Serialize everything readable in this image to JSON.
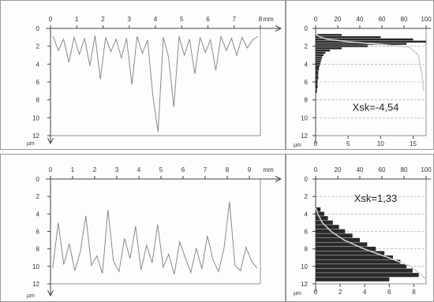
{
  "chart_data": [
    {
      "type": "line",
      "id": "profile-top",
      "x_unit": "mm",
      "y_unit": "µm",
      "xlim": [
        0,
        8
      ],
      "ylim": [
        0,
        12
      ],
      "y_inverted": true,
      "x_ticks": [
        0,
        1,
        2,
        3,
        4,
        5,
        6,
        7,
        8
      ],
      "y_ticks": [
        0,
        2,
        4,
        6,
        8,
        10,
        12
      ],
      "grid": false,
      "series": [
        {
          "color": "#8a8a8a",
          "x": [
            0.1,
            0.3,
            0.5,
            0.7,
            0.9,
            1.1,
            1.3,
            1.5,
            1.7,
            1.9,
            2.1,
            2.3,
            2.5,
            2.7,
            2.9,
            3.1,
            3.3,
            3.5,
            3.7,
            3.9,
            4.1,
            4.3,
            4.5,
            4.7,
            4.9,
            5.1,
            5.3,
            5.5,
            5.7,
            5.9,
            6.1,
            6.3,
            6.5,
            6.7,
            6.9,
            7.1,
            7.3,
            7.5,
            7.7,
            7.9
          ],
          "y": [
            0.9,
            2.5,
            1.2,
            3.8,
            1.0,
            2.9,
            1.1,
            4.2,
            0.8,
            5.7,
            1.0,
            2.6,
            1.2,
            3.3,
            1.1,
            6.3,
            0.9,
            2.8,
            1.3,
            7.5,
            11.6,
            1.0,
            3.2,
            8.8,
            0.9,
            3.0,
            1.2,
            5.1,
            1.0,
            2.7,
            1.3,
            4.7,
            0.9,
            2.5,
            1.1,
            3.0,
            1.0,
            2.2,
            1.3,
            0.9
          ]
        }
      ]
    },
    {
      "type": "bar",
      "id": "histogram-top",
      "orientation": "horizontal",
      "xlim": [
        0,
        100
      ],
      "x_ticks_top": [
        0,
        20,
        40,
        60,
        80,
        100
      ],
      "secondary_xlim": [
        0,
        17
      ],
      "x_ticks_bottom": [
        0,
        5,
        10,
        15
      ],
      "ylim": [
        0,
        12
      ],
      "y_ticks": [
        0,
        2,
        4,
        6,
        8,
        10,
        12
      ],
      "y_unit": "µm",
      "grid": "horizontal-dashed",
      "annotation": "Xsk=-4,54",
      "bars": {
        "depth": [
          0.75,
          1.0,
          1.25,
          1.5,
          1.75,
          2.0,
          2.25,
          2.5,
          2.75,
          3.0,
          3.25,
          3.5,
          3.75,
          4.0,
          4.25,
          4.5,
          5.0,
          5.5,
          6.0,
          6.5,
          7.0
        ],
        "value": [
          4,
          10,
          15,
          17,
          14,
          8,
          4,
          2.2,
          1.5,
          1.2,
          1.0,
          0.9,
          0.8,
          0.7,
          0.6,
          0.5,
          0.4,
          0.4,
          0.3,
          0.3,
          0.2
        ]
      },
      "abbott_curve": {
        "color": "#d0d0d0",
        "percent": [
          0,
          3,
          10,
          30,
          60,
          85,
          93,
          96,
          98
        ],
        "depth": [
          0.6,
          0.9,
          1.2,
          1.5,
          1.8,
          2.1,
          3.0,
          5.0,
          7.0
        ]
      }
    },
    {
      "type": "line",
      "id": "profile-bottom",
      "x_unit": "mm",
      "y_unit": "µm",
      "xlim": [
        0,
        9.5
      ],
      "ylim": [
        0,
        12
      ],
      "y_inverted": true,
      "x_ticks": [
        0,
        1,
        2,
        3,
        4,
        5,
        6,
        7,
        8,
        9
      ],
      "y_ticks": [
        0,
        2,
        4,
        6,
        8,
        10,
        12
      ],
      "grid": false,
      "series": [
        {
          "color": "#8a8a8a",
          "x": [
            0.1,
            0.35,
            0.6,
            0.85,
            1.1,
            1.35,
            1.6,
            1.85,
            2.1,
            2.35,
            2.6,
            2.85,
            3.1,
            3.35,
            3.6,
            3.85,
            4.1,
            4.35,
            4.6,
            4.85,
            5.1,
            5.35,
            5.6,
            5.85,
            6.1,
            6.35,
            6.6,
            6.85,
            7.1,
            7.35,
            7.6,
            7.85,
            8.1,
            8.35,
            8.6,
            8.85,
            9.1,
            9.35
          ],
          "y": [
            10.2,
            5.0,
            9.8,
            7.4,
            10.5,
            8.3,
            4.2,
            9.9,
            8.8,
            10.8,
            3.5,
            9.4,
            10.6,
            6.8,
            9.1,
            5.4,
            10.4,
            7.6,
            9.6,
            5.2,
            10.1,
            8.6,
            10.9,
            7.2,
            9.0,
            10.7,
            7.9,
            10.3,
            6.5,
            9.2,
            10.6,
            8.0,
            2.6,
            9.9,
            10.5,
            7.8,
            9.4,
            10.2
          ]
        }
      ]
    },
    {
      "type": "bar",
      "id": "histogram-bottom",
      "orientation": "horizontal",
      "xlim": [
        0,
        100
      ],
      "x_ticks_top": [
        0,
        20,
        40,
        60,
        80,
        100
      ],
      "secondary_xlim": [
        0,
        9
      ],
      "x_ticks_bottom": [
        0,
        2,
        4,
        6,
        8
      ],
      "ylim": [
        0,
        12
      ],
      "y_ticks": [
        0,
        2,
        4,
        6,
        8,
        10,
        12
      ],
      "y_unit": "µm",
      "grid": "horizontal-dashed",
      "annotation": "Xsk=1,33",
      "bars": {
        "depth": [
          3.5,
          4.0,
          4.5,
          5.0,
          5.5,
          6.0,
          6.5,
          7.0,
          7.5,
          8.0,
          8.5,
          9.0,
          9.5,
          10.0,
          10.5,
          11.0,
          11.5
        ],
        "value": [
          0.4,
          0.7,
          1.0,
          1.4,
          1.9,
          2.4,
          3.0,
          3.6,
          4.2,
          4.9,
          5.6,
          6.3,
          6.9,
          7.4,
          7.9,
          8.4,
          6.0
        ]
      },
      "abbott_curve": {
        "color": "#d0d0d0",
        "percent": [
          0,
          2,
          6,
          14,
          26,
          44,
          66,
          86,
          96,
          100
        ],
        "depth": [
          3.3,
          4.0,
          5.0,
          6.0,
          7.0,
          8.0,
          9.0,
          10.0,
          11.0,
          11.5
        ]
      }
    }
  ]
}
